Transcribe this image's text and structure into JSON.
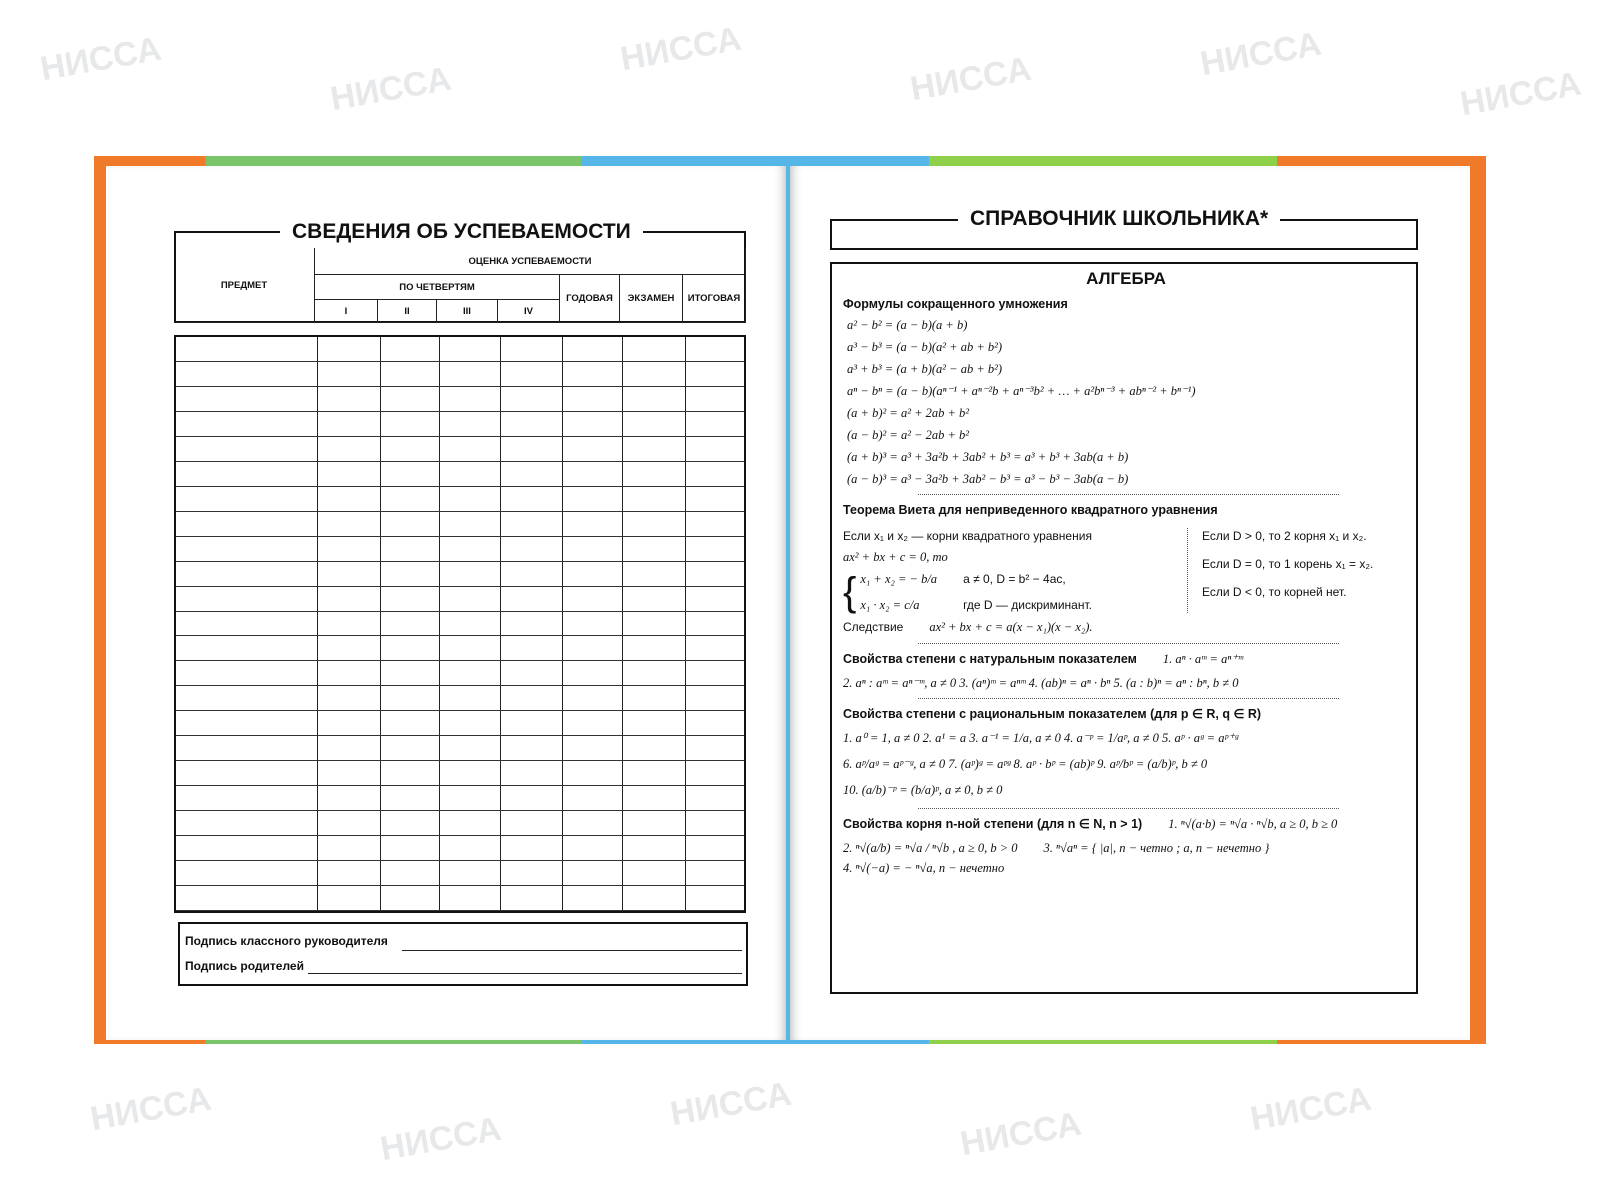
{
  "watermark": "НИССА",
  "left_page": {
    "title": "СВЕДЕНИЯ ОБ УСПЕВАЕМОСТИ",
    "columns": {
      "subject": "ПРЕДМЕТ",
      "grade": "ОЦЕНКА УСПЕВАЕМОСТИ",
      "quarters": "ПО ЧЕТВЕРТЯМ",
      "q1": "I",
      "q2": "II",
      "q3": "III",
      "q4": "IV",
      "annual": "ГОДОВАЯ",
      "exam": "ЭКЗАМЕН",
      "final": "ИТОГОВАЯ"
    },
    "signature_teacher": "Подпись классного руководителя",
    "signature_parents": "Подпись родителей"
  },
  "right_page": {
    "title": "СПРАВОЧНИК ШКОЛЬНИКА*",
    "section": "АЛГЕБРА",
    "abbrev_heading": "Формулы сокращенного умножения",
    "abbrev": [
      "a² − b² = (a − b)(a + b)",
      "a³ − b³ = (a − b)(a² + ab + b²)",
      "a³ + b³ = (a + b)(a² − ab + b²)",
      "aⁿ − bⁿ = (a − b)(aⁿ⁻¹ + aⁿ⁻²b + aⁿ⁻³b² + … + a²bⁿ⁻³ + abⁿ⁻² + bⁿ⁻¹)",
      "(a + b)² = a² + 2ab + b²",
      "(a − b)² = a² − 2ab + b²",
      "(a + b)³ = a³ + 3a²b + 3ab² + b³ = a³ + b³ + 3ab(a + b)",
      "(a − b)³ = a³ − 3a²b + 3ab² − b³ = a³ − b³ − 3ab(a − b)"
    ],
    "vieta_heading": "Теорема Виета для неприведенного квадратного уравнения",
    "vieta": {
      "if": "Если  x₁ и x₂ — корни квадратного уравнения",
      "eq": "ax² + bx + c = 0, то",
      "sum": "x₁ + x₂ = − b/a",
      "prod": "x₁ · x₂ = c/a",
      "cond": "a ≠ 0,  D = b² − 4ac,",
      "where": "где D — дискриминант.",
      "d_pos": "Если  D > 0, то 2 корня x₁ и x₂.",
      "d_zero": "Если  D = 0, то 1 корень x₁ = x₂.",
      "d_neg": "Если  D < 0, то корней нет.",
      "corollary_label": "Следствие",
      "corollary": "ax² + bx + c = a(x − x₁)(x − x₂)."
    },
    "nat_heading": "Свойства степени с натуральным показателем",
    "nat_1": "1. aⁿ · aᵐ = aⁿ⁺ᵐ",
    "nat_rest": "2. aⁿ : aᵐ = aⁿ⁻ᵐ,  a ≠ 0   3. (aⁿ)ᵐ = aⁿᵐ   4. (ab)ⁿ = aⁿ · bⁿ   5. (a : b)ⁿ = aⁿ : bⁿ,  b ≠ 0",
    "rat_heading": "Свойства степени с рациональным показателем (для p ∈ R, q ∈ R)",
    "rat_1": "1. a⁰ = 1,  a ≠ 0    2. a¹ = a    3. a⁻¹ = 1/a,  a ≠ 0    4. a⁻ᵖ = 1/aᵖ,  a ≠ 0    5. aᵖ · aᵍ = aᵖ⁺ᵍ",
    "rat_2": "6. aᵖ/aᵍ = aᵖ⁻ᵍ,  a ≠ 0    7. (aᵖ)ᵍ = aᵖᵍ    8. aᵖ · bᵖ = (ab)ᵖ    9. aᵖ/bᵖ = (a/b)ᵖ,  b ≠ 0",
    "rat_3": "10. (a/b)⁻ᵖ = (b/a)ᵖ,  a ≠ 0, b ≠ 0",
    "root_heading": "Свойства корня n-ной степени (для n ∈ N, n > 1)",
    "root_1": "1. ⁿ√(a·b) = ⁿ√a · ⁿ√b,  a ≥ 0,  b ≥ 0",
    "root_2": "2. ⁿ√(a/b) = ⁿ√a / ⁿ√b ,  a ≥ 0, b > 0",
    "root_3": "3. ⁿ√aⁿ = { |a|, n − четно ; a, n − нечетно }",
    "root_4": "4. ⁿ√(−a) = − ⁿ√a, n − нечетно"
  }
}
